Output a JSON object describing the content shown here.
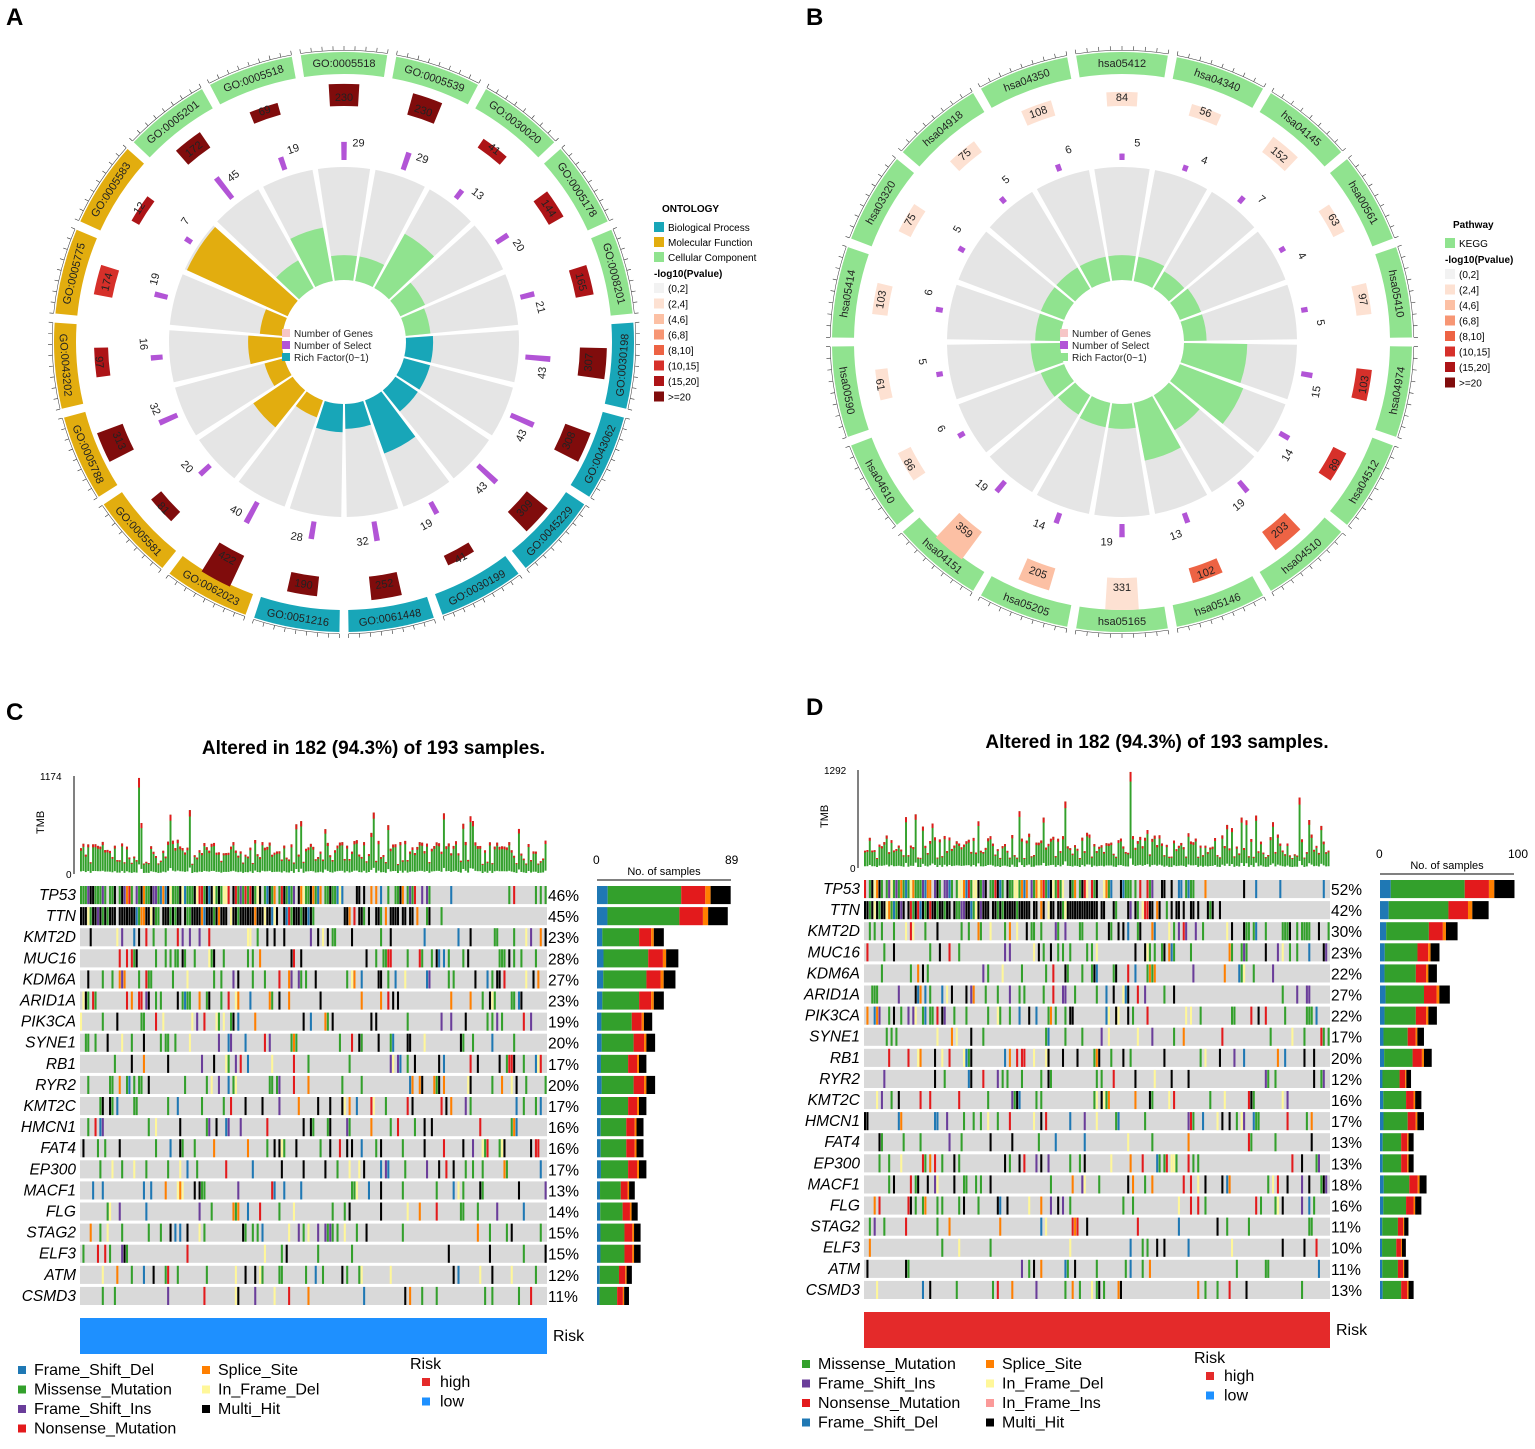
{
  "panels": [
    "A",
    "B",
    "C",
    "D"
  ],
  "colors": {
    "bp": "#18a6b8",
    "mf": "#e2ad0f",
    "cc": "#90e38f",
    "kegg": "#90e38f",
    "ring_bg": "#e5e5e5",
    "select_bar": "#b254d6",
    "missense": "#33a02c",
    "frame_shift_del": "#1f78b4",
    "frame_shift_ins": "#6a3d9a",
    "nonsense": "#e31a1c",
    "splice_site": "#ff7f00",
    "in_frame_del": "#fff799",
    "in_frame_ins": "#fb9a99",
    "multi_hit": "#000000",
    "high": "#e42a2a",
    "low": "#1e90ff",
    "pval_scale": [
      "#f2f2f2",
      "#fde1d2",
      "#fcc0a4",
      "#f79674",
      "#ed6344",
      "#d6302a",
      "#ad1417",
      "#800c0c"
    ]
  },
  "chart_data": [
    {
      "panel": "A",
      "type": "circular_go_enrichment",
      "terms": [
        {
          "id": "GO:0005518",
          "category": "cc",
          "genes": 230,
          "select": 29,
          "bin": 7,
          "rich": 0.22
        },
        {
          "id": "GO:0005539",
          "category": "cc",
          "genes": 230,
          "select": 29,
          "bin": 7,
          "rich": 0.22
        },
        {
          "id": "GO:0030020",
          "category": "cc",
          "genes": 41,
          "select": 13,
          "bin": 6,
          "rich": 0.55
        },
        {
          "id": "GO:0005178",
          "category": "cc",
          "genes": 144,
          "select": 20,
          "bin": 6,
          "rich": 0.24
        },
        {
          "id": "GO:0008201",
          "category": "cc",
          "genes": 165,
          "select": 21,
          "bin": 6,
          "rich": 0.22
        },
        {
          "id": "GO:0030198",
          "category": "bp",
          "genes": 307,
          "select": 43,
          "bin": 7,
          "rich": 0.24
        },
        {
          "id": "GO:0043062",
          "category": "bp",
          "genes": 308,
          "select": 43,
          "bin": 7,
          "rich": 0.24
        },
        {
          "id": "GO:0045229",
          "category": "bp",
          "genes": 309,
          "select": 43,
          "bin": 7,
          "rich": 0.24
        },
        {
          "id": "GO:0030199",
          "category": "bp",
          "genes": 41,
          "select": 19,
          "bin": 7,
          "rich": 0.5
        },
        {
          "id": "GO:0061448",
          "category": "bp",
          "genes": 252,
          "select": 32,
          "bin": 7,
          "rich": 0.22
        },
        {
          "id": "GO:0051216",
          "category": "bp",
          "genes": 190,
          "select": 28,
          "bin": 7,
          "rich": 0.25
        },
        {
          "id": "GO:0062023",
          "category": "mf",
          "genes": 422,
          "select": 40,
          "bin": 7,
          "rich": 0.16
        },
        {
          "id": "GO:0005581",
          "category": "mf",
          "genes": 81,
          "select": 20,
          "bin": 7,
          "rich": 0.42
        },
        {
          "id": "GO:0005788",
          "category": "mf",
          "genes": 313,
          "select": 32,
          "bin": 7,
          "rich": 0.18
        },
        {
          "id": "GO:0043202",
          "category": "mf",
          "genes": 97,
          "select": 16,
          "bin": 6,
          "rich": 0.3
        },
        {
          "id": "GO:0005775",
          "category": "mf",
          "genes": 174,
          "select": 19,
          "bin": 5,
          "rich": 0.2
        },
        {
          "id": "GO:0005583",
          "category": "mf",
          "genes": 12,
          "select": 7,
          "bin": 6,
          "rich": 0.98
        },
        {
          "id": "GO:0005201",
          "category": "cc",
          "genes": 172,
          "select": 45,
          "bin": 7,
          "rich": 0.28
        },
        {
          "id": "GO:0005518",
          "category": "cc",
          "genes": 69,
          "select": 19,
          "bin": 7,
          "rich": 0.48
        }
      ],
      "legend": {
        "title": "ONTOLOGY",
        "categories": [
          "Biological Process",
          "Molecular Function",
          "Cellular Component"
        ],
        "pval_title": "-log10(Pvalue)",
        "pval_bins": [
          "(0,2]",
          "(2,4]",
          "(4,6]",
          "(6,8]",
          "(8,10]",
          "(10,15]",
          "(15,20]",
          ">=20"
        ],
        "inner": [
          "Number of Genes",
          "Number of Select",
          "Rich Factor(0~1)"
        ]
      }
    },
    {
      "panel": "B",
      "type": "circular_kegg_enrichment",
      "terms": [
        {
          "id": "hsa05412",
          "genes": 84,
          "select": 5,
          "bin": 1,
          "rich": 0.22
        },
        {
          "id": "hsa04340",
          "genes": 56,
          "select": 4,
          "bin": 1,
          "rich": 0.22
        },
        {
          "id": "hsa04145",
          "genes": 152,
          "select": 7,
          "bin": 1,
          "rich": 0.18
        },
        {
          "id": "hsa00561",
          "genes": 63,
          "select": 4,
          "bin": 1,
          "rich": 0.2
        },
        {
          "id": "hsa05410",
          "genes": 97,
          "select": 5,
          "bin": 1,
          "rich": 0.2
        },
        {
          "id": "hsa04974",
          "genes": 103,
          "select": 15,
          "bin": 5,
          "rich": 0.56
        },
        {
          "id": "hsa04512",
          "genes": 89,
          "select": 14,
          "bin": 5,
          "rich": 0.6
        },
        {
          "id": "hsa04510",
          "genes": 203,
          "select": 19,
          "bin": 4,
          "rich": 0.36
        },
        {
          "id": "hsa05146",
          "genes": 102,
          "select": 13,
          "bin": 4,
          "rich": 0.52
        },
        {
          "id": "hsa05165",
          "genes": 331,
          "select": 19,
          "bin": 1,
          "rich": 0.22
        },
        {
          "id": "hsa05205",
          "genes": 205,
          "select": 14,
          "bin": 2,
          "rich": 0.22
        },
        {
          "id": "hsa04151",
          "genes": 359,
          "select": 19,
          "bin": 2,
          "rich": 0.2
        },
        {
          "id": "hsa04610",
          "genes": 86,
          "select": 6,
          "bin": 1,
          "rich": 0.22
        },
        {
          "id": "hsa00590",
          "genes": 61,
          "select": 5,
          "bin": 1,
          "rich": 0.26
        },
        {
          "id": "hsa05414",
          "genes": 103,
          "select": 6,
          "bin": 1,
          "rich": 0.22
        },
        {
          "id": "hsa03320",
          "genes": 75,
          "select": 5,
          "bin": 1,
          "rich": 0.22
        },
        {
          "id": "hsa04918",
          "genes": 75,
          "select": 5,
          "bin": 1,
          "rich": 0.22
        },
        {
          "id": "hsa04350",
          "genes": 108,
          "select": 6,
          "bin": 1,
          "rich": 0.22
        }
      ],
      "legend": {
        "title": "Pathway",
        "categories": [
          "KEGG"
        ],
        "pval_title": "-log10(Pvalue)",
        "pval_bins": [
          "(0,2]",
          "(2,4]",
          "(4,6]",
          "(6,8]",
          "(8,10]",
          "(10,15]",
          "(15,20]",
          ">=20"
        ],
        "inner": [
          "Number of Genes",
          "Number of Select",
          "Rich Factor(0~1)"
        ]
      }
    },
    {
      "panel": "C",
      "type": "oncoplot",
      "title": "Altered in 182 (94.3%) of 193 samples.",
      "tmb_label": "TMB",
      "tmb_max": "1174",
      "tmb_min": "0",
      "samples": 193,
      "bar_axis": {
        "min": "0",
        "max": "89",
        "label": "No. of samples",
        "maxval": 89
      },
      "genes": [
        "TP53",
        "TTN",
        "KMT2D",
        "MUC16",
        "KDM6A",
        "ARID1A",
        "PIK3CA",
        "SYNE1",
        "RB1",
        "RYR2",
        "KMT2C",
        "HMCN1",
        "FAT4",
        "EP300",
        "MACF1",
        "FLG",
        "STAG2",
        "ELF3",
        "ATM",
        "CSMD3"
      ],
      "percents": [
        "46%",
        "45%",
        "23%",
        "28%",
        "27%",
        "23%",
        "19%",
        "20%",
        "17%",
        "20%",
        "17%",
        "16%",
        "16%",
        "17%",
        "13%",
        "14%",
        "15%",
        "15%",
        "12%",
        "11%"
      ],
      "freq": [
        0.46,
        0.45,
        0.23,
        0.28,
        0.27,
        0.23,
        0.19,
        0.2,
        0.17,
        0.2,
        0.17,
        0.16,
        0.16,
        0.17,
        0.13,
        0.14,
        0.15,
        0.15,
        0.12,
        0.11
      ],
      "risk_label": "Risk",
      "risk_group": "low",
      "legend_items": [
        {
          "label": "Frame_Shift_Del",
          "type": "frame_shift_del"
        },
        {
          "label": "Missense_Mutation",
          "type": "missense"
        },
        {
          "label": "Frame_Shift_Ins",
          "type": "frame_shift_ins"
        },
        {
          "label": "Nonsense_Mutation",
          "type": "nonsense"
        },
        {
          "label": "Splice_Site",
          "type": "splice_site"
        },
        {
          "label": "In_Frame_Del",
          "type": "in_frame_del"
        },
        {
          "label": "Multi_Hit",
          "type": "multi_hit"
        }
      ],
      "risk_legend": {
        "title": "Risk",
        "items": [
          "high",
          "low"
        ]
      }
    },
    {
      "panel": "D",
      "type": "oncoplot",
      "title": "Altered in 182 (94.3%) of 193 samples.",
      "tmb_label": "TMB",
      "tmb_max": "1292",
      "tmb_min": "0",
      "samples": 193,
      "bar_axis": {
        "min": "0",
        "max": "100",
        "label": "No. of samples",
        "maxval": 100
      },
      "genes": [
        "TP53",
        "TTN",
        "KMT2D",
        "MUC16",
        "KDM6A",
        "ARID1A",
        "PIK3CA",
        "SYNE1",
        "RB1",
        "RYR2",
        "KMT2C",
        "HMCN1",
        "FAT4",
        "EP300",
        "MACF1",
        "FLG",
        "STAG2",
        "ELF3",
        "ATM",
        "CSMD3"
      ],
      "percents": [
        "52%",
        "42%",
        "30%",
        "23%",
        "22%",
        "27%",
        "22%",
        "17%",
        "20%",
        "12%",
        "16%",
        "17%",
        "13%",
        "13%",
        "18%",
        "16%",
        "11%",
        "10%",
        "11%",
        "13%"
      ],
      "freq": [
        0.52,
        0.42,
        0.3,
        0.23,
        0.22,
        0.27,
        0.22,
        0.17,
        0.2,
        0.12,
        0.16,
        0.17,
        0.13,
        0.13,
        0.18,
        0.16,
        0.11,
        0.1,
        0.11,
        0.13
      ],
      "risk_label": "Risk",
      "risk_group": "high",
      "legend_items": [
        {
          "label": "Missense_Mutation",
          "type": "missense"
        },
        {
          "label": "Frame_Shift_Ins",
          "type": "frame_shift_ins"
        },
        {
          "label": "Nonsense_Mutation",
          "type": "nonsense"
        },
        {
          "label": "Frame_Shift_Del",
          "type": "frame_shift_del"
        },
        {
          "label": "Splice_Site",
          "type": "splice_site"
        },
        {
          "label": "In_Frame_Del",
          "type": "in_frame_del"
        },
        {
          "label": "In_Frame_Ins",
          "type": "in_frame_ins"
        },
        {
          "label": "Multi_Hit",
          "type": "multi_hit"
        }
      ],
      "risk_legend": {
        "title": "Risk",
        "items": [
          "high",
          "low"
        ]
      }
    }
  ]
}
